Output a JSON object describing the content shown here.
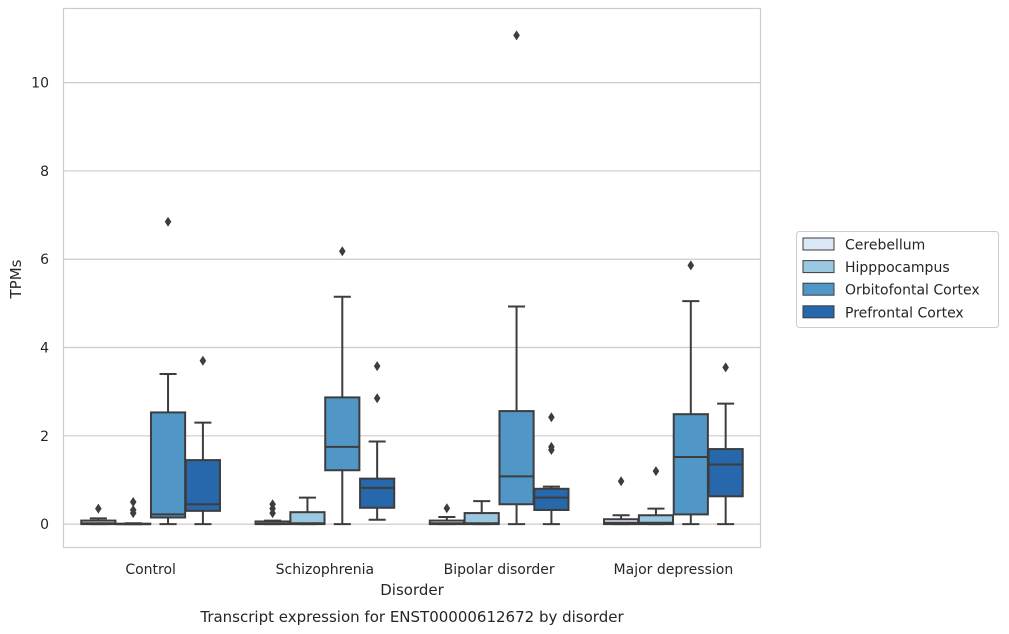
{
  "chart_data": {
    "type": "box",
    "title": "",
    "caption": "Transcript expression for ENST00000612672 by disorder",
    "xlabel": "Disorder",
    "ylabel": "TPMs",
    "ylim": [
      -0.53,
      11.68
    ],
    "yticks": [
      0,
      2,
      4,
      6,
      8,
      10
    ],
    "grid": "horizontal",
    "legend_position": "right",
    "categories": [
      "Control",
      "Schizophrenia",
      "Bipolar disorder",
      "Major depression"
    ],
    "series": [
      {
        "name": "Cerebellum",
        "color": "#dbe9f6",
        "boxes": [
          {
            "whislo": 0,
            "q1": 0,
            "med": 0.02,
            "q3": 0.08,
            "whishi": 0.13,
            "fliers": [
              0.35
            ]
          },
          {
            "whislo": 0,
            "q1": 0,
            "med": 0.01,
            "q3": 0.06,
            "whishi": 0.08,
            "fliers": [
              0.25,
              0.35,
              0.45
            ]
          },
          {
            "whislo": 0,
            "q1": 0,
            "med": 0.02,
            "q3": 0.08,
            "whishi": 0.16,
            "fliers": [
              0.36
            ]
          },
          {
            "whislo": 0,
            "q1": 0,
            "med": 0.03,
            "q3": 0.11,
            "whishi": 0.2,
            "fliers": [
              0.97
            ]
          }
        ]
      },
      {
        "name": "Hipppocampus",
        "color": "#9ac8e0",
        "boxes": [
          {
            "whislo": 0,
            "q1": 0,
            "med": 0,
            "q3": 0.01,
            "whishi": 0.02,
            "fliers": [
              0.25,
              0.32,
              0.5
            ]
          },
          {
            "whislo": 0,
            "q1": 0,
            "med": 0.02,
            "q3": 0.27,
            "whishi": 0.6,
            "fliers": []
          },
          {
            "whislo": 0,
            "q1": 0,
            "med": 0.02,
            "q3": 0.25,
            "whishi": 0.52,
            "fliers": []
          },
          {
            "whislo": 0,
            "q1": 0,
            "med": 0.03,
            "q3": 0.2,
            "whishi": 0.35,
            "fliers": [
              1.2
            ]
          }
        ]
      },
      {
        "name": "Orbitofontal Cortex",
        "color": "#5096c7",
        "boxes": [
          {
            "whislo": 0,
            "q1": 0.15,
            "med": 0.22,
            "q3": 2.53,
            "whishi": 3.4,
            "fliers": [
              6.85
            ]
          },
          {
            "whislo": 0,
            "q1": 1.22,
            "med": 1.75,
            "q3": 2.87,
            "whishi": 5.15,
            "fliers": [
              6.18
            ]
          },
          {
            "whislo": 0,
            "q1": 0.45,
            "med": 1.08,
            "q3": 2.56,
            "whishi": 4.93,
            "fliers": [
              11.07
            ]
          },
          {
            "whislo": 0,
            "q1": 0.22,
            "med": 1.52,
            "q3": 2.49,
            "whishi": 5.05,
            "fliers": [
              5.86
            ]
          }
        ]
      },
      {
        "name": "Prefrontal Cortex",
        "color": "#2767ab",
        "boxes": [
          {
            "whislo": 0,
            "q1": 0.3,
            "med": 0.45,
            "q3": 1.45,
            "whishi": 2.3,
            "fliers": [
              3.7
            ]
          },
          {
            "whislo": 0.1,
            "q1": 0.37,
            "med": 0.82,
            "q3": 1.03,
            "whishi": 1.87,
            "fliers": [
              2.85,
              3.58
            ]
          },
          {
            "whislo": 0,
            "q1": 0.32,
            "med": 0.6,
            "q3": 0.8,
            "whishi": 0.85,
            "fliers": [
              1.68,
              1.75,
              2.42
            ]
          },
          {
            "whislo": 0,
            "q1": 0.63,
            "med": 1.35,
            "q3": 1.7,
            "whishi": 2.73,
            "fliers": [
              3.55
            ]
          }
        ]
      }
    ]
  }
}
